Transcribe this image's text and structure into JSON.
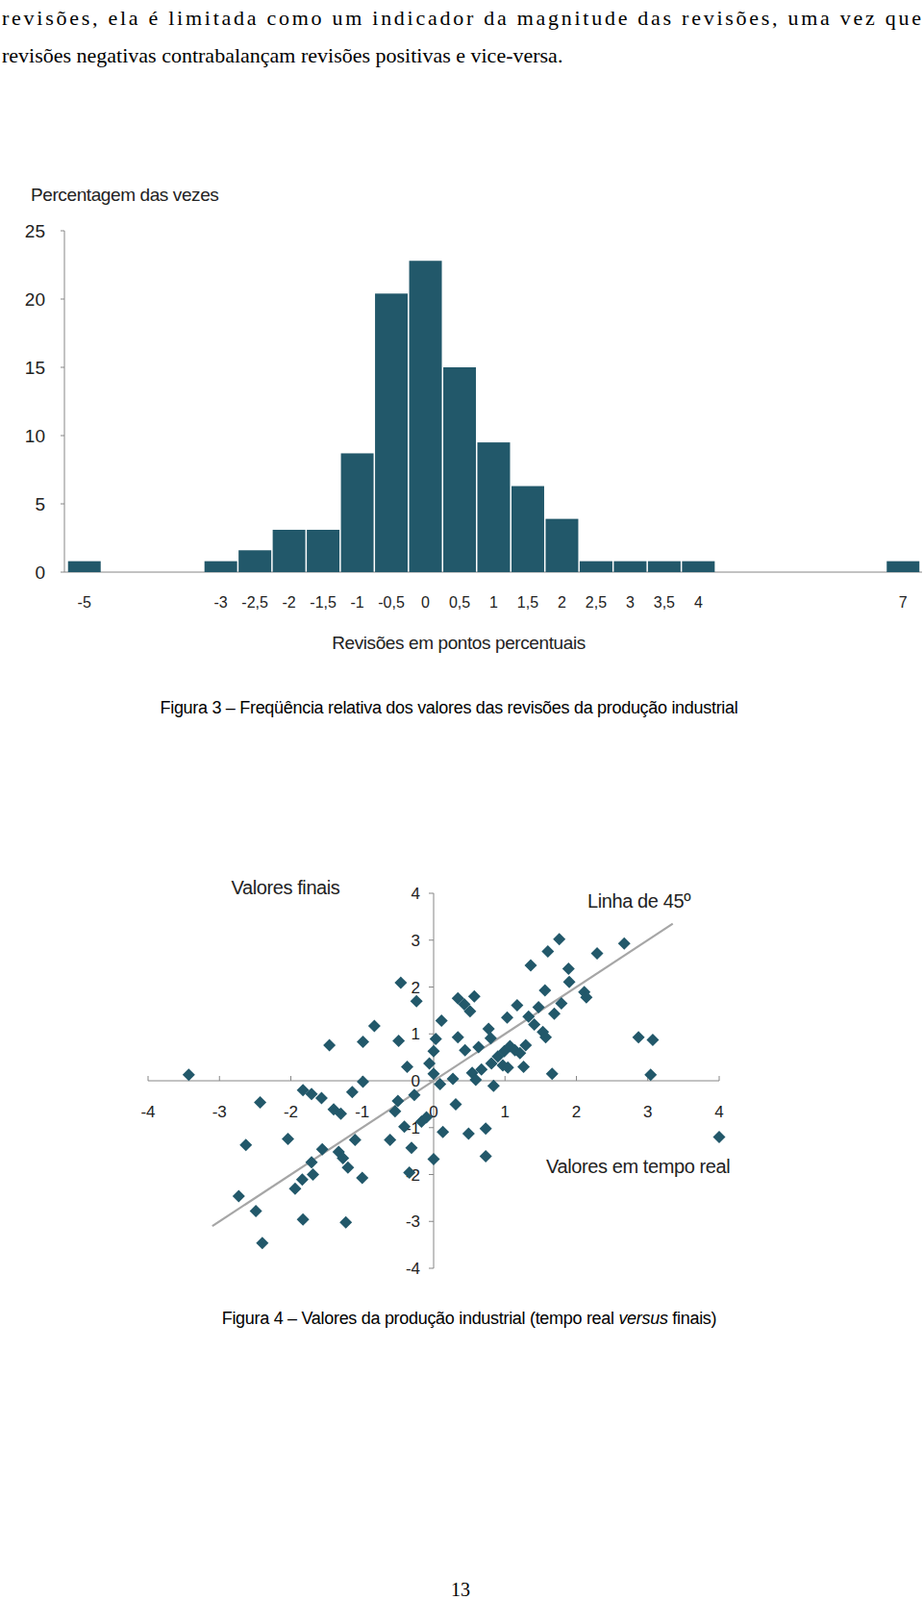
{
  "page": {
    "paragraph_lines": [
      "revisões, ela é limitada como um indicador da magnitude das revisões, uma vez que",
      "revisões negativas contrabalançam revisões positivas e vice-versa."
    ],
    "page_number": "13"
  },
  "chart_data": [
    {
      "type": "bar",
      "title": "Figura 3 – Freqüência relativa dos valores das revisões da produção industrial",
      "y_label": "Percentagem das vezes",
      "x_label": "Revisões em pontos percentuais",
      "categories": [
        "-5",
        null,
        null,
        null,
        "-3",
        "-2,5",
        "-2",
        "-1,5",
        "-1",
        "-0,5",
        "0",
        "0,5",
        "1",
        "1,5",
        "2",
        "2,5",
        "3",
        "3,5",
        "4",
        null,
        null,
        null,
        null,
        null,
        "7"
      ],
      "values": [
        0.8,
        0,
        0,
        0,
        0.8,
        1.6,
        3.1,
        3.1,
        8.7,
        20.4,
        22.8,
        15.0,
        9.5,
        6.3,
        3.9,
        0.8,
        0.8,
        0.8,
        0.8,
        0,
        0,
        0,
        0,
        0,
        0.8
      ],
      "color": "#22586a",
      "ylim": [
        0,
        25
      ],
      "yticks": [
        0,
        5,
        10,
        15,
        20,
        25
      ]
    },
    {
      "type": "scatter",
      "title": [
        "Figura 4 – Valores da produção industrial (tempo real ",
        "versus",
        " finais)"
      ],
      "y_label": "Valores finais",
      "x_label": "Valores em tempo real",
      "series": [
        {
          "type": "scatter",
          "marker": "diamond",
          "color": "#22586a",
          "x": [
            -3.43,
            -2.63,
            -2.43,
            -2.73,
            -2.49,
            -2.4,
            -2.04,
            -1.83,
            -1.71,
            -1.57,
            -1.94,
            -1.83,
            -1.84,
            -1.69,
            -1.71,
            -1.56,
            -1.46,
            -1.4,
            -1.3,
            -1.33,
            -1.27,
            -1.23,
            -1.2,
            -1.1,
            -1.14,
            -0.99,
            -0.99,
            -1.0,
            -0.83,
            -0.61,
            -0.54,
            -0.46,
            -0.49,
            -0.24,
            -0.41,
            -0.5,
            -0.31,
            -0.34,
            -0.37,
            -0.27,
            -0.17,
            -0.1,
            0.0,
            -0.06,
            0.0,
            0.03,
            0.0,
            0.09,
            0.11,
            0.13,
            0.27,
            0.31,
            0.34,
            0.34,
            0.43,
            0.51,
            0.57,
            0.49,
            0.44,
            0.54,
            0.59,
            0.63,
            0.67,
            0.73,
            0.73,
            0.77,
            0.8,
            0.81,
            0.84,
            0.9,
            0.97,
            0.99,
            1.03,
            1.07,
            1.04,
            1.14,
            1.17,
            1.21,
            1.26,
            1.29,
            1.36,
            1.33,
            1.41,
            1.47,
            1.53,
            1.57,
            1.56,
            1.6,
            1.66,
            1.69,
            1.76,
            1.79,
            1.89,
            1.9,
            2.11,
            2.14,
            2.29,
            2.67,
            2.87,
            3.07,
            3.04,
            4.0
          ],
          "values": [
            0.13,
            -1.37,
            -0.46,
            -2.46,
            -2.78,
            -3.46,
            -1.24,
            -0.2,
            -0.28,
            -0.37,
            -2.3,
            -2.96,
            -2.11,
            -2.0,
            -1.74,
            -1.46,
            0.76,
            -0.61,
            -0.7,
            -1.52,
            -1.65,
            -3.02,
            -1.85,
            -1.26,
            -0.24,
            -0.02,
            0.83,
            -2.07,
            1.17,
            -1.26,
            -0.65,
            2.09,
            0.85,
            1.7,
            -0.98,
            -0.43,
            -1.43,
            -1.96,
            0.3,
            -0.3,
            -0.87,
            -0.78,
            -1.67,
            0.37,
            0.63,
            0.89,
            0.15,
            -0.07,
            1.28,
            -1.09,
            0.04,
            -0.5,
            1.76,
            0.93,
            1.63,
            1.48,
            1.8,
            -1.13,
            0.65,
            0.17,
            0.02,
            0.72,
            0.24,
            -1.02,
            -1.61,
            1.11,
            0.91,
            0.37,
            -0.11,
            0.52,
            0.33,
            0.63,
            1.35,
            0.74,
            0.28,
            0.65,
            1.61,
            0.59,
            0.3,
            0.76,
            2.46,
            1.37,
            1.2,
            1.57,
            1.04,
            0.93,
            1.93,
            2.76,
            0.15,
            1.43,
            3.02,
            1.65,
            2.39,
            2.11,
            1.89,
            1.78,
            2.72,
            2.93,
            0.93,
            0.87,
            0.13,
            -1.2
          ]
        },
        {
          "name": "Linha de 45º",
          "type": "line",
          "line_style": "solid",
          "color": "#a6a6a6",
          "x": [
            -3.1,
            3.35
          ],
          "values": [
            -3.1,
            3.35
          ]
        }
      ],
      "xlim": [
        -4,
        4
      ],
      "ylim": [
        -4,
        4
      ],
      "xticks": [
        -4,
        -3,
        -2,
        -1,
        0,
        1,
        2,
        3,
        4
      ],
      "yticks": [
        -4,
        -3,
        -2,
        -1,
        0,
        1,
        2,
        3,
        4
      ]
    }
  ]
}
